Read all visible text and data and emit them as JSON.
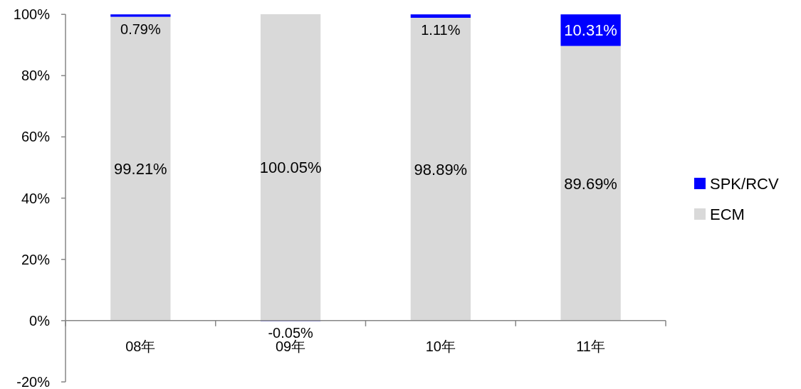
{
  "chart_data": {
    "type": "bar",
    "stacked": true,
    "categories": [
      "08年",
      "09年",
      "10年",
      "11年"
    ],
    "series": [
      {
        "name": "ECM",
        "color": "#d9d9d9",
        "values": [
          99.21,
          100.05,
          98.89,
          89.69
        ],
        "value_labels": [
          "99.21%",
          "100.05%",
          "98.89%",
          "89.69%"
        ]
      },
      {
        "name": "SPK/RCV",
        "color": "#0000ff",
        "values": [
          0.79,
          -0.05,
          1.11,
          10.31
        ],
        "value_labels": [
          "0.79%",
          "-0.05%",
          "1.11%",
          "10.31%"
        ]
      }
    ],
    "ylim": [
      -20,
      100.05
    ],
    "yticks": [
      {
        "value": -20,
        "label": "-20%"
      },
      {
        "value": 0,
        "label": "0%"
      },
      {
        "value": 20,
        "label": "20%"
      },
      {
        "value": 40,
        "label": "40%"
      },
      {
        "value": 60,
        "label": "60%"
      },
      {
        "value": 80,
        "label": "80%"
      },
      {
        "value": 100,
        "label": "100%"
      }
    ],
    "grid": false,
    "legend": "right"
  }
}
